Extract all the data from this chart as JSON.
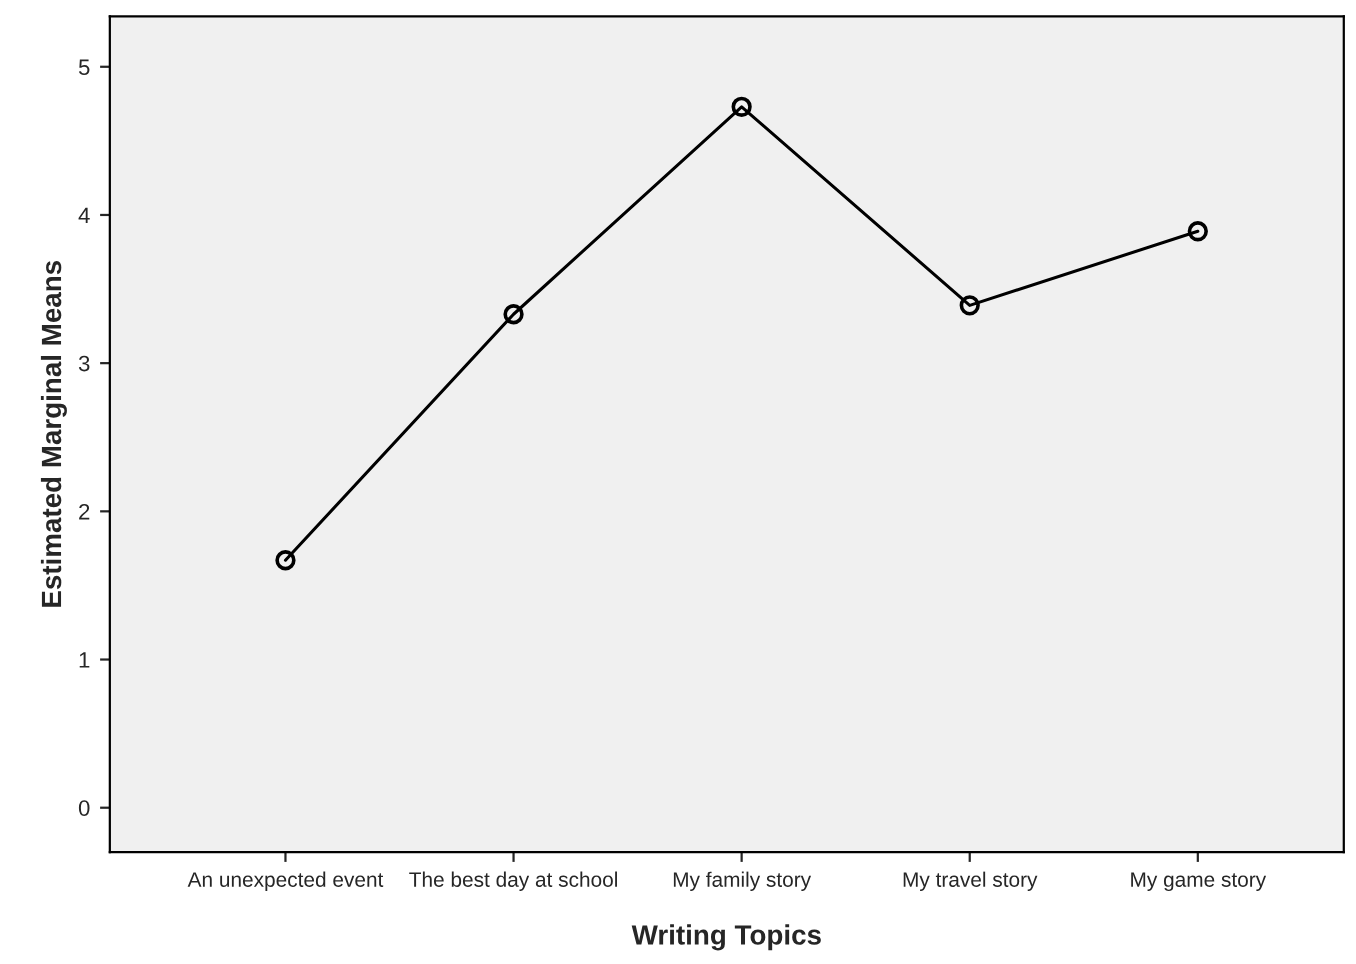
{
  "chart_data": {
    "type": "line",
    "xlabel": "Writing Topics",
    "ylabel": "Estimated Marginal Means",
    "categories": [
      "An unexpected event",
      "The best day at school",
      "My family story",
      "My travel story",
      "My game story"
    ],
    "series": [
      {
        "color": "#000000",
        "values": [
          1.67,
          3.33,
          4.73,
          3.39,
          3.89
        ]
      }
    ],
    "ylim": [
      -0.3,
      5.34
    ],
    "yticks": [
      0,
      1,
      2,
      3,
      4,
      5
    ],
    "grid": false,
    "marker": "circle",
    "line_style": "solid"
  }
}
